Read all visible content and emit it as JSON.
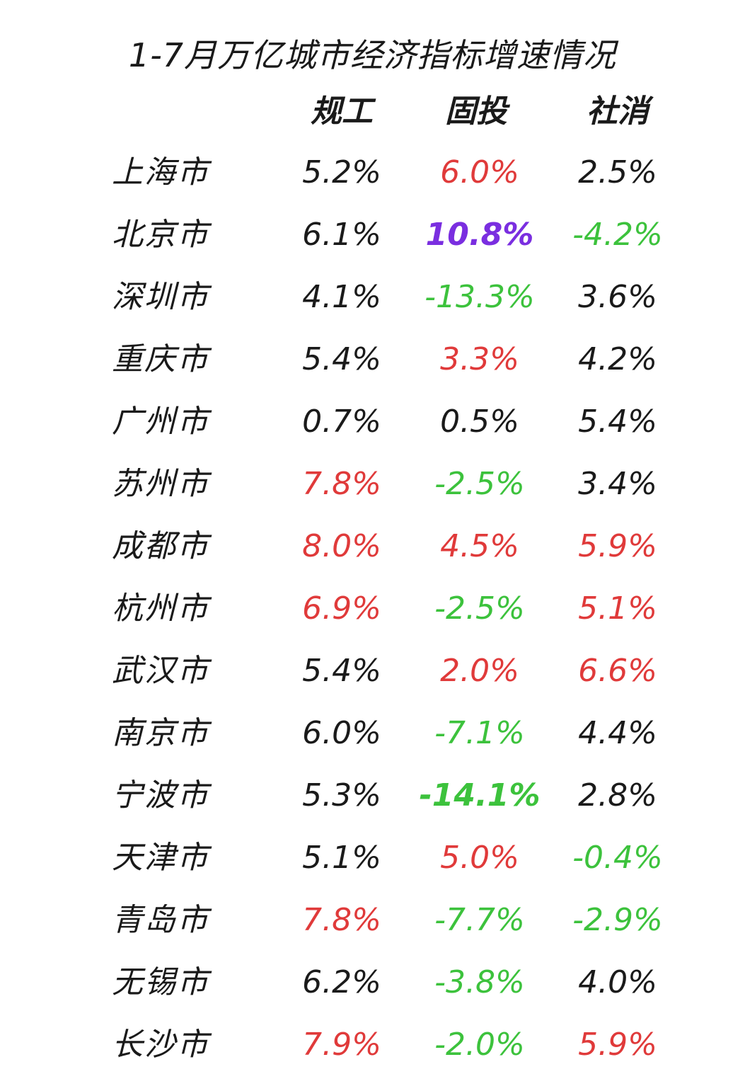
{
  "chart_data": {
    "type": "table",
    "title": "1-7月万亿城市经济指标增速情况",
    "columns": [
      "规工",
      "固投",
      "社消"
    ],
    "rows": [
      {
        "city": "上海市",
        "values": [
          {
            "text": "5.2%",
            "value": 5.2,
            "color": "#1a1a1a",
            "bold": false
          },
          {
            "text": "6.0%",
            "value": 6.0,
            "color": "#e03a3a",
            "bold": false
          },
          {
            "text": "2.5%",
            "value": 2.5,
            "color": "#1a1a1a",
            "bold": false
          }
        ]
      },
      {
        "city": "北京市",
        "values": [
          {
            "text": "6.1%",
            "value": 6.1,
            "color": "#1a1a1a",
            "bold": false
          },
          {
            "text": "10.8%",
            "value": 10.8,
            "color": "#7a2ee0",
            "bold": true
          },
          {
            "text": "-4.2%",
            "value": -4.2,
            "color": "#3cc23c",
            "bold": false
          }
        ]
      },
      {
        "city": "深圳市",
        "values": [
          {
            "text": "4.1%",
            "value": 4.1,
            "color": "#1a1a1a",
            "bold": false
          },
          {
            "text": "-13.3%",
            "value": -13.3,
            "color": "#3cc23c",
            "bold": false
          },
          {
            "text": "3.6%",
            "value": 3.6,
            "color": "#1a1a1a",
            "bold": false
          }
        ]
      },
      {
        "city": "重庆市",
        "values": [
          {
            "text": "5.4%",
            "value": 5.4,
            "color": "#1a1a1a",
            "bold": false
          },
          {
            "text": "3.3%",
            "value": 3.3,
            "color": "#e03a3a",
            "bold": false
          },
          {
            "text": "4.2%",
            "value": 4.2,
            "color": "#1a1a1a",
            "bold": false
          }
        ]
      },
      {
        "city": "广州市",
        "values": [
          {
            "text": "0.7%",
            "value": 0.7,
            "color": "#1a1a1a",
            "bold": false
          },
          {
            "text": "0.5%",
            "value": 0.5,
            "color": "#1a1a1a",
            "bold": false
          },
          {
            "text": "5.4%",
            "value": 5.4,
            "color": "#1a1a1a",
            "bold": false
          }
        ]
      },
      {
        "city": "苏州市",
        "values": [
          {
            "text": "7.8%",
            "value": 7.8,
            "color": "#e03a3a",
            "bold": false
          },
          {
            "text": "-2.5%",
            "value": -2.5,
            "color": "#3cc23c",
            "bold": false
          },
          {
            "text": "3.4%",
            "value": 3.4,
            "color": "#1a1a1a",
            "bold": false
          }
        ]
      },
      {
        "city": "成都市",
        "values": [
          {
            "text": "8.0%",
            "value": 8.0,
            "color": "#e03a3a",
            "bold": false
          },
          {
            "text": "4.5%",
            "value": 4.5,
            "color": "#e03a3a",
            "bold": false
          },
          {
            "text": "5.9%",
            "value": 5.9,
            "color": "#e03a3a",
            "bold": false
          }
        ]
      },
      {
        "city": "杭州市",
        "values": [
          {
            "text": "6.9%",
            "value": 6.9,
            "color": "#e03a3a",
            "bold": false
          },
          {
            "text": "-2.5%",
            "value": -2.5,
            "color": "#3cc23c",
            "bold": false
          },
          {
            "text": "5.1%",
            "value": 5.1,
            "color": "#e03a3a",
            "bold": false
          }
        ]
      },
      {
        "city": "武汉市",
        "values": [
          {
            "text": "5.4%",
            "value": 5.4,
            "color": "#1a1a1a",
            "bold": false
          },
          {
            "text": "2.0%",
            "value": 2.0,
            "color": "#e03a3a",
            "bold": false
          },
          {
            "text": "6.6%",
            "value": 6.6,
            "color": "#e03a3a",
            "bold": false
          }
        ]
      },
      {
        "city": "南京市",
        "values": [
          {
            "text": "6.0%",
            "value": 6.0,
            "color": "#1a1a1a",
            "bold": false
          },
          {
            "text": "-7.1%",
            "value": -7.1,
            "color": "#3cc23c",
            "bold": false
          },
          {
            "text": "4.4%",
            "value": 4.4,
            "color": "#1a1a1a",
            "bold": false
          }
        ]
      },
      {
        "city": "宁波市",
        "values": [
          {
            "text": "5.3%",
            "value": 5.3,
            "color": "#1a1a1a",
            "bold": false
          },
          {
            "text": "-14.1%",
            "value": -14.1,
            "color": "#3cc23c",
            "bold": true
          },
          {
            "text": "2.8%",
            "value": 2.8,
            "color": "#1a1a1a",
            "bold": false
          }
        ]
      },
      {
        "city": "天津市",
        "values": [
          {
            "text": "5.1%",
            "value": 5.1,
            "color": "#1a1a1a",
            "bold": false
          },
          {
            "text": "5.0%",
            "value": 5.0,
            "color": "#e03a3a",
            "bold": false
          },
          {
            "text": "-0.4%",
            "value": -0.4,
            "color": "#3cc23c",
            "bold": false
          }
        ]
      },
      {
        "city": "青岛市",
        "values": [
          {
            "text": "7.8%",
            "value": 7.8,
            "color": "#e03a3a",
            "bold": false
          },
          {
            "text": "-7.7%",
            "value": -7.7,
            "color": "#3cc23c",
            "bold": false
          },
          {
            "text": "-2.9%",
            "value": -2.9,
            "color": "#3cc23c",
            "bold": false
          }
        ]
      },
      {
        "city": "无锡市",
        "values": [
          {
            "text": "6.2%",
            "value": 6.2,
            "color": "#1a1a1a",
            "bold": false
          },
          {
            "text": "-3.8%",
            "value": -3.8,
            "color": "#3cc23c",
            "bold": false
          },
          {
            "text": "4.0%",
            "value": 4.0,
            "color": "#1a1a1a",
            "bold": false
          }
        ]
      },
      {
        "city": "长沙市",
        "values": [
          {
            "text": "7.9%",
            "value": 7.9,
            "color": "#e03a3a",
            "bold": false
          },
          {
            "text": "-2.0%",
            "value": -2.0,
            "color": "#3cc23c",
            "bold": false
          },
          {
            "text": "5.9%",
            "value": 5.9,
            "color": "#e03a3a",
            "bold": false
          }
        ]
      }
    ]
  }
}
